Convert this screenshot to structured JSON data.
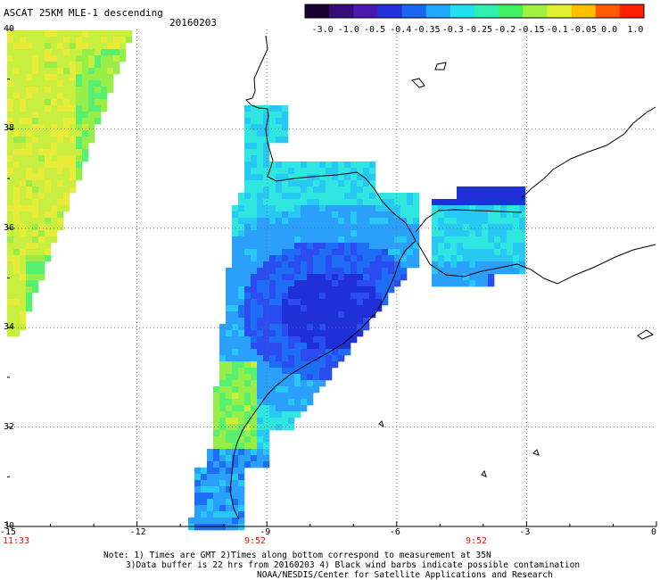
{
  "header": {
    "title": "ASCAT 25KM MLE-1 descending",
    "date": "20160203"
  },
  "colorbar": {
    "ticks": [
      "-3.0",
      "-1.0",
      "-0.5",
      "-0.4",
      "-0.35",
      "-0.3",
      "-0.25",
      "-0.2",
      "-0.15",
      "-0.1",
      "-0.05",
      "0.0",
      "1.0"
    ],
    "colors": [
      "#1a0033",
      "#3a0a7a",
      "#4a1ab0",
      "#2233dd",
      "#1a66f0",
      "#20a8ff",
      "#22e0f0",
      "#30f0b0",
      "#40f060",
      "#a0f040",
      "#e0f030",
      "#ffc000",
      "#ff5a00",
      "#ff2000"
    ]
  },
  "axes": {
    "lon_labels": [
      "-15",
      "-12",
      "-9",
      "-6",
      "-3",
      "0"
    ],
    "lat_labels": [
      "40",
      "38",
      "36",
      "34",
      "32",
      "30"
    ],
    "lon_range": [
      -15,
      0
    ],
    "lat_range": [
      30,
      40
    ]
  },
  "times": [
    "11:33",
    "9:52",
    "9:52"
  ],
  "notes": {
    "line1": "Note: 1) Times are GMT 2)Times along bottom correspond to measurement at 35N",
    "line2": "3)Data buffer is 22 hrs from 20160203 4) Black wind barbs indicate possible contamination",
    "line3": "NOAA/NESDIS/Center for Satellite Applications and Research"
  }
}
